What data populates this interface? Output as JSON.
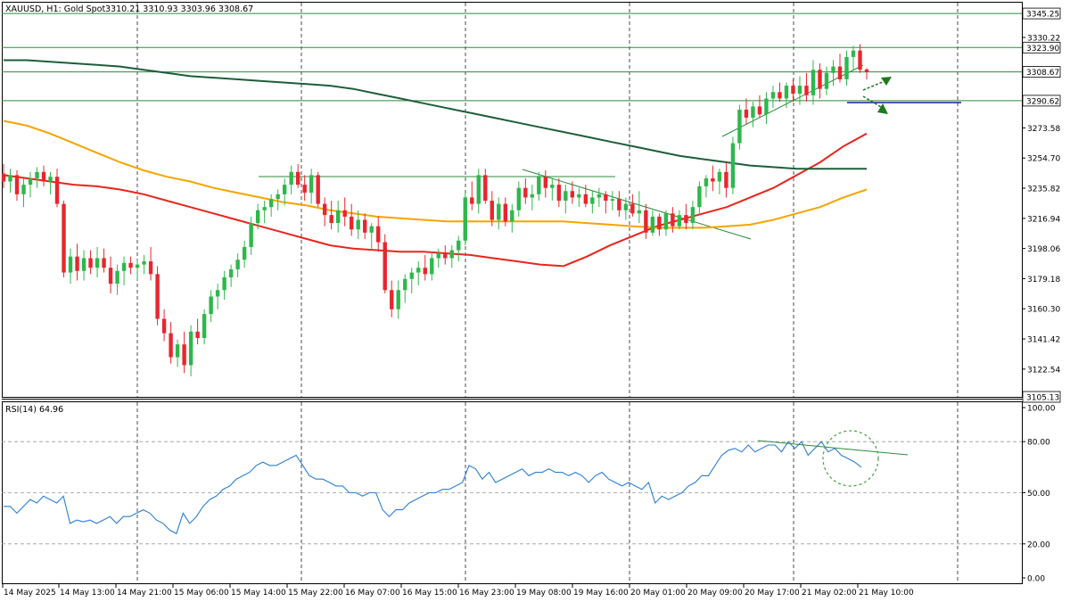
{
  "header": {
    "symbol": "XAUUSD, H1:  Gold Spot",
    "ohlc": "3310.21 3310.93 3303.96 3308.67"
  },
  "colors": {
    "bull": "#26a69a",
    "bear": "#ef5350",
    "bull_candle": "#2eb84b",
    "bear_candle": "#e8262d",
    "hline": "#2e8b3a",
    "ema_red": "#e8261c",
    "ema_orange": "#f5a500",
    "ema_dark": "#1d5e3a",
    "rsi_line": "#2a7fd4",
    "blue_line": "#1a1aa0",
    "highlight_circle": "#3fa33f"
  },
  "chart_data": [
    {
      "type": "candlestick",
      "title": "XAUUSD, H1: Gold Spot",
      "last_ohlc": {
        "open": 3310.21,
        "high": 3310.93,
        "low": 3303.96,
        "close": 3308.67
      },
      "ylim": [
        3105.13,
        3352
      ],
      "y_ticks": [
        3122.54,
        3141.42,
        3160.3,
        3179.18,
        3198.06,
        3216.94,
        3235.82,
        3254.7,
        3273.58,
        3330.22
      ],
      "x_ticks": [
        "14 May 2025",
        "14 May 13:00",
        "14 May 21:00",
        "15 May 06:00",
        "15 May 14:00",
        "15 May 22:00",
        "16 May 07:00",
        "16 May 15:00",
        "16 May 23:00",
        "19 May 08:00",
        "19 May 16:00",
        "20 May 01:00",
        "20 May 09:00",
        "20 May 17:00",
        "21 May 02:00",
        "21 May 10:00"
      ],
      "price_labels": [
        {
          "value": 3345.25,
          "label": "3345.25"
        },
        {
          "value": 3323.9,
          "label": "3323.90"
        },
        {
          "value": 3308.67,
          "label": "3308.67"
        },
        {
          "value": 3290.62,
          "label": "3290.62"
        },
        {
          "value": 3105.13,
          "label": "3105.13"
        }
      ],
      "candles": [
        [
          3245,
          3251,
          3236,
          3240
        ],
        [
          3240,
          3248,
          3233,
          3244
        ],
        [
          3244,
          3247,
          3228,
          3232
        ],
        [
          3232,
          3242,
          3224,
          3238
        ],
        [
          3238,
          3246,
          3230,
          3242
        ],
        [
          3242,
          3249,
          3236,
          3246
        ],
        [
          3246,
          3250,
          3237,
          3240
        ],
        [
          3240,
          3246,
          3232,
          3243
        ],
        [
          3243,
          3248,
          3224,
          3226
        ],
        [
          3226,
          3228,
          3180,
          3183
        ],
        [
          3183,
          3198,
          3176,
          3193
        ],
        [
          3193,
          3201,
          3178,
          3184
        ],
        [
          3184,
          3197,
          3178,
          3192
        ],
        [
          3192,
          3197,
          3182,
          3186
        ],
        [
          3186,
          3199,
          3180,
          3192
        ],
        [
          3192,
          3198,
          3183,
          3186
        ],
        [
          3186,
          3193,
          3170,
          3176
        ],
        [
          3176,
          3188,
          3169,
          3184
        ],
        [
          3184,
          3193,
          3175,
          3189
        ],
        [
          3189,
          3193,
          3182,
          3186
        ],
        [
          3186,
          3191,
          3178,
          3188
        ],
        [
          3188,
          3194,
          3182,
          3190
        ],
        [
          3190,
          3199,
          3178,
          3182
        ],
        [
          3182,
          3187,
          3150,
          3154
        ],
        [
          3154,
          3160,
          3140,
          3145
        ],
        [
          3145,
          3152,
          3126,
          3130
        ],
        [
          3130,
          3141,
          3124,
          3138
        ],
        [
          3138,
          3146,
          3120,
          3125
        ],
        [
          3125,
          3150,
          3118,
          3146
        ],
        [
          3146,
          3154,
          3138,
          3142
        ],
        [
          3142,
          3160,
          3138,
          3157
        ],
        [
          3157,
          3172,
          3152,
          3168
        ],
        [
          3168,
          3176,
          3160,
          3172
        ],
        [
          3172,
          3184,
          3166,
          3180
        ],
        [
          3180,
          3188,
          3174,
          3185
        ],
        [
          3185,
          3195,
          3180,
          3191
        ],
        [
          3191,
          3203,
          3186,
          3199
        ],
        [
          3199,
          3218,
          3194,
          3214
        ],
        [
          3214,
          3226,
          3210,
          3222
        ],
        [
          3222,
          3228,
          3214,
          3224
        ],
        [
          3224,
          3232,
          3218,
          3229
        ],
        [
          3229,
          3235,
          3222,
          3232
        ],
        [
          3232,
          3242,
          3225,
          3238
        ],
        [
          3238,
          3250,
          3232,
          3246
        ],
        [
          3246,
          3251,
          3236,
          3238
        ],
        [
          3238,
          3244,
          3228,
          3233
        ],
        [
          3233,
          3248,
          3226,
          3244
        ],
        [
          3244,
          3246,
          3224,
          3226
        ],
        [
          3226,
          3230,
          3212,
          3219
        ],
        [
          3219,
          3228,
          3210,
          3214
        ],
        [
          3214,
          3228,
          3208,
          3222
        ],
        [
          3222,
          3230,
          3212,
          3218
        ],
        [
          3218,
          3226,
          3206,
          3210
        ],
        [
          3210,
          3222,
          3204,
          3216
        ],
        [
          3216,
          3220,
          3204,
          3208
        ],
        [
          3208,
          3214,
          3198,
          3212
        ],
        [
          3212,
          3218,
          3196,
          3202
        ],
        [
          3202,
          3207,
          3170,
          3172
        ],
        [
          3172,
          3178,
          3155,
          3160
        ],
        [
          3160,
          3178,
          3154,
          3172
        ],
        [
          3172,
          3182,
          3164,
          3179
        ],
        [
          3179,
          3186,
          3170,
          3183
        ],
        [
          3183,
          3190,
          3175,
          3186
        ],
        [
          3186,
          3194,
          3178,
          3182
        ],
        [
          3182,
          3196,
          3178,
          3192
        ],
        [
          3192,
          3198,
          3186,
          3195
        ],
        [
          3195,
          3200,
          3188,
          3192
        ],
        [
          3192,
          3200,
          3186,
          3197
        ],
        [
          3197,
          3206,
          3190,
          3203
        ],
        [
          3203,
          3234,
          3200,
          3230
        ],
        [
          3230,
          3240,
          3222,
          3226
        ],
        [
          3226,
          3248,
          3220,
          3244
        ],
        [
          3244,
          3248,
          3226,
          3228
        ],
        [
          3228,
          3234,
          3212,
          3216
        ],
        [
          3216,
          3230,
          3210,
          3226
        ],
        [
          3226,
          3230,
          3212,
          3215
        ],
        [
          3215,
          3226,
          3208,
          3222
        ],
        [
          3222,
          3240,
          3218,
          3236
        ],
        [
          3236,
          3242,
          3226,
          3230
        ],
        [
          3230,
          3238,
          3222,
          3232
        ],
        [
          3232,
          3246,
          3228,
          3243
        ],
        [
          3243,
          3247,
          3230,
          3236
        ],
        [
          3236,
          3242,
          3228,
          3238
        ],
        [
          3238,
          3242,
          3224,
          3228
        ],
        [
          3228,
          3238,
          3220,
          3234
        ],
        [
          3234,
          3240,
          3226,
          3230
        ],
        [
          3230,
          3236,
          3224,
          3232
        ],
        [
          3232,
          3238,
          3224,
          3226
        ],
        [
          3226,
          3234,
          3220,
          3230
        ],
        [
          3230,
          3236,
          3224,
          3232
        ],
        [
          3232,
          3234,
          3220,
          3228
        ],
        [
          3228,
          3234,
          3222,
          3229
        ],
        [
          3229,
          3234,
          3218,
          3222
        ],
        [
          3222,
          3230,
          3216,
          3226
        ],
        [
          3226,
          3232,
          3218,
          3220
        ],
        [
          3220,
          3234,
          3214,
          3222
        ],
        [
          3222,
          3226,
          3204,
          3208
        ],
        [
          3208,
          3222,
          3206,
          3218
        ],
        [
          3218,
          3220,
          3206,
          3210
        ],
        [
          3210,
          3222,
          3206,
          3220
        ],
        [
          3220,
          3224,
          3208,
          3212
        ],
        [
          3212,
          3222,
          3210,
          3219
        ],
        [
          3219,
          3226,
          3210,
          3214
        ],
        [
          3214,
          3228,
          3210,
          3224
        ],
        [
          3224,
          3240,
          3220,
          3237
        ],
        [
          3237,
          3244,
          3230,
          3242
        ],
        [
          3242,
          3250,
          3234,
          3240
        ],
        [
          3240,
          3248,
          3232,
          3246
        ],
        [
          3246,
          3252,
          3230,
          3236
        ],
        [
          3236,
          3268,
          3232,
          3264
        ],
        [
          3264,
          3288,
          3260,
          3285
        ],
        [
          3285,
          3292,
          3276,
          3280
        ],
        [
          3280,
          3290,
          3274,
          3287
        ],
        [
          3287,
          3294,
          3280,
          3282
        ],
        [
          3282,
          3296,
          3276,
          3292
        ],
        [
          3292,
          3300,
          3286,
          3296
        ],
        [
          3296,
          3302,
          3290,
          3292
        ],
        [
          3292,
          3302,
          3286,
          3300
        ],
        [
          3300,
          3304,
          3290,
          3295
        ],
        [
          3295,
          3306,
          3288,
          3300
        ],
        [
          3300,
          3308,
          3290,
          3294
        ],
        [
          3294,
          3316,
          3288,
          3310
        ],
        [
          3310,
          3314,
          3292,
          3298
        ],
        [
          3298,
          3312,
          3294,
          3308
        ],
        [
          3308,
          3316,
          3300,
          3312
        ],
        [
          3312,
          3320,
          3302,
          3304
        ],
        [
          3304,
          3322,
          3300,
          3318
        ],
        [
          3318,
          3325,
          3310,
          3322
        ],
        [
          3322,
          3326,
          3308,
          3310
        ],
        [
          3310.21,
          3310.93,
          3303.96,
          3308.67
        ]
      ],
      "moving_averages": [
        {
          "name": "MA red",
          "values": [
            3244,
            3242,
            3240,
            3238,
            3237,
            3235,
            3232,
            3228,
            3224,
            3220,
            3216,
            3212,
            3208,
            3204,
            3200,
            3198,
            3197,
            3196,
            3196,
            3195,
            3194,
            3192,
            3190,
            3188,
            3187,
            3193,
            3200,
            3206,
            3212,
            3216,
            3220,
            3224,
            3230,
            3236,
            3244,
            3252,
            3262,
            3270
          ]
        },
        {
          "name": "MA orange",
          "values": [
            3278,
            3275,
            3270,
            3264,
            3258,
            3252,
            3247,
            3243,
            3240,
            3236,
            3233,
            3230,
            3227,
            3225,
            3222,
            3220,
            3218,
            3217,
            3216,
            3215,
            3215,
            3215,
            3215,
            3215,
            3215,
            3214,
            3213,
            3212,
            3211,
            3211,
            3211,
            3212,
            3213,
            3216,
            3220,
            3224,
            3230,
            3235
          ]
        },
        {
          "name": "MA dark green",
          "values": [
            3316,
            3316,
            3315,
            3314,
            3313,
            3312,
            3310,
            3308,
            3306,
            3305,
            3304,
            3303,
            3302,
            3301,
            3300,
            3298,
            3295,
            3292,
            3289,
            3286,
            3283,
            3280,
            3277,
            3274,
            3271,
            3268,
            3265,
            3262,
            3259,
            3256,
            3254,
            3252,
            3250,
            3249,
            3248,
            3248,
            3248,
            3248
          ]
        }
      ]
    },
    {
      "type": "line",
      "title": "RSI(14) 64.96",
      "ylim": [
        0,
        100
      ],
      "y_ticks": [
        0,
        20,
        50,
        80,
        100
      ],
      "y_tick_labels": [
        "0.00",
        "20.00",
        "50.00",
        "80.00",
        "100.00"
      ],
      "levels": [
        20,
        50,
        80
      ],
      "values": [
        42,
        42,
        38,
        42,
        46,
        44,
        48,
        46,
        44,
        48,
        32,
        34,
        33,
        34,
        32,
        34,
        36,
        32,
        36,
        36,
        38,
        40,
        38,
        34,
        32,
        28,
        26,
        38,
        32,
        36,
        42,
        46,
        48,
        52,
        54,
        58,
        60,
        62,
        66,
        68,
        66,
        66,
        68,
        70,
        72,
        66,
        60,
        58,
        58,
        56,
        54,
        54,
        50,
        50,
        48,
        50,
        50,
        40,
        36,
        40,
        40,
        44,
        46,
        48,
        50,
        50,
        52,
        52,
        54,
        56,
        66,
        64,
        58,
        62,
        56,
        58,
        60,
        62,
        64,
        60,
        62,
        62,
        64,
        62,
        62,
        60,
        62,
        60,
        56,
        60,
        62,
        58,
        56,
        54,
        56,
        54,
        52,
        56,
        44,
        48,
        46,
        48,
        50,
        54,
        56,
        60,
        60,
        66,
        72,
        75,
        76,
        74,
        78,
        74,
        76,
        78,
        78,
        74,
        80,
        76,
        80,
        72,
        76,
        80,
        74,
        76,
        72,
        70,
        68,
        64.96
      ]
    }
  ],
  "annotations": {
    "rsi_label": "RSI(14) 64.96"
  }
}
